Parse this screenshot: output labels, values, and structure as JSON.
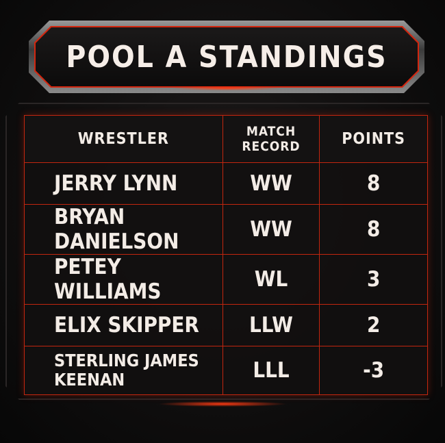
{
  "title": "POOL A STANDINGS",
  "accent_color": "#c3260f",
  "table": {
    "headers": {
      "wrestler": "WRESTLER",
      "record_line1": "MATCH",
      "record_line2": "RECORD",
      "points": "POINTS"
    },
    "rows": [
      {
        "wrestler": "JERRY LYNN",
        "record": "WW",
        "points": "8"
      },
      {
        "wrestler": "BRYAN DANIELSON",
        "record": "WW",
        "points": "8"
      },
      {
        "wrestler": "PETEY WILLIAMS",
        "record": "WL",
        "points": "3"
      },
      {
        "wrestler": "ELIX SKIPPER",
        "record": "LLW",
        "points": "2"
      },
      {
        "wrestler_line1": "STERLING JAMES",
        "wrestler_line2": "KEENAN",
        "record": "LLL",
        "points": "-3"
      }
    ]
  }
}
